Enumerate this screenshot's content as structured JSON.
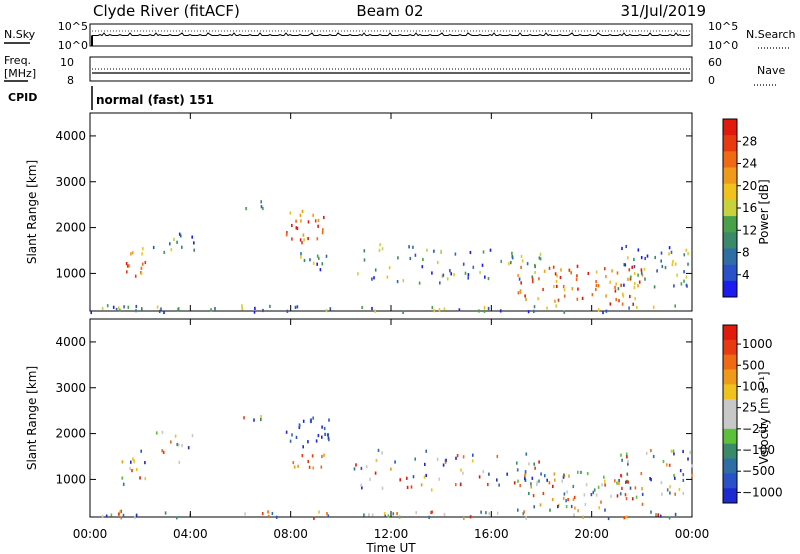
{
  "header": {
    "title": "Clyde River (fitACF)",
    "beam": "Beam 02",
    "date": "31/Jul/2019"
  },
  "top_panel": {
    "left_label": "N.Sky",
    "right_label": "N.Search",
    "left_ticks": [
      "10^5",
      "10^0"
    ],
    "right_ticks": [
      "10^5",
      "10^0"
    ]
  },
  "freq_panel": {
    "left_label_1": "Freq.",
    "left_label_2": "[MHz]",
    "right_label": "Nave",
    "left_ticks": [
      "10",
      "8"
    ],
    "right_ticks": [
      "60",
      "0"
    ]
  },
  "cpid": {
    "label": "CPID",
    "value": "normal (fast) 151"
  },
  "chart_data": [
    {
      "type": "heatmap",
      "name_hint": "power",
      "ylabel": "Slant Range [km]",
      "ylim": [
        180,
        4500
      ],
      "y_ticks": [
        1000,
        2000,
        3000,
        4000
      ],
      "x_ticks": [
        "00:00",
        "04:00",
        "08:00",
        "12:00",
        "16:00",
        "20:00",
        "00:00"
      ],
      "colorbar": {
        "label": "Power [dB]",
        "ticks": [
          "4",
          "8",
          "12",
          "16",
          "20",
          "24",
          "28"
        ],
        "colors": [
          "#1c1cf0",
          "#2a52c8",
          "#2e6ea5",
          "#3a8a6a",
          "#4aa04a",
          "#c8d23c",
          "#f0c21e",
          "#f09a1a",
          "#f06a14",
          "#e83a10",
          "#e01a0c"
        ]
      }
    },
    {
      "type": "heatmap",
      "name_hint": "velocity",
      "ylabel": "Slant Range [km]",
      "xlabel": "Time UT",
      "ylim": [
        180,
        4500
      ],
      "y_ticks": [
        1000,
        2000,
        3000,
        4000
      ],
      "x_ticks": [
        "00:00",
        "04:00",
        "08:00",
        "12:00",
        "16:00",
        "20:00",
        "00:00"
      ],
      "colorbar": {
        "label": "Velocity [m s⁻¹]",
        "ticks": [
          "1000",
          "500",
          "100",
          "25",
          "−25",
          "−100",
          "−500",
          "−1000"
        ],
        "colors": [
          "#1c2ad0",
          "#2a52c8",
          "#2e6ea5",
          "#3a8a6a",
          "#5cc03a",
          "#c8c8c8",
          "#c8c8c8",
          "#f0c21e",
          "#f09a1a",
          "#f06a14",
          "#e83a10",
          "#e01a0c"
        ]
      }
    }
  ]
}
